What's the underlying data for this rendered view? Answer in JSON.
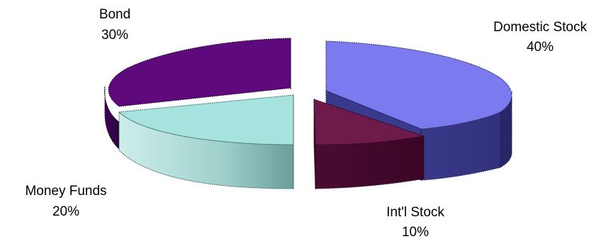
{
  "chart_data": {
    "type": "pie",
    "style": "3d-exploded",
    "slices": [
      {
        "label": "Domestic Stock",
        "pct_label": "40%",
        "value": 40,
        "color": "#7B7BEF"
      },
      {
        "label": "Int'l Stock",
        "pct_label": "10%",
        "value": 10,
        "color": "#6E1A4A"
      },
      {
        "label": "Money Funds",
        "pct_label": "20%",
        "value": 20,
        "color": "#A6E3DF"
      },
      {
        "label": "Bond",
        "pct_label": "30%",
        "value": 30,
        "color": "#5E0A7C"
      }
    ]
  }
}
